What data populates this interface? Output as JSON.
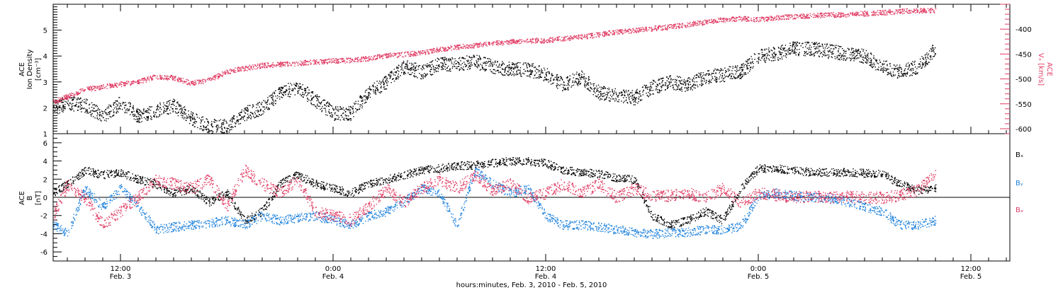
{
  "colors": {
    "black": "#000000",
    "red": "#e03c64",
    "blue": "#1e82dc"
  },
  "xlabel": "hours:minutes, Feb. 3, 2010 - Feb. 5, 2010",
  "x_ticks": [
    {
      "time": "12:00",
      "date": "Feb. 3",
      "hours": 12
    },
    {
      "time": "0:00",
      "date": "Feb. 4",
      "hours": 24
    },
    {
      "time": "12:00",
      "date": "Feb. 4",
      "hours": 36
    },
    {
      "time": "0:00",
      "date": "Feb. 5",
      "hours": 48
    },
    {
      "time": "12:00",
      "date": "Feb. 5",
      "hours": 60
    }
  ],
  "chart_data": [
    {
      "type": "scatter",
      "panel": "top",
      "xlim_hours": [
        8.2,
        62.2
      ],
      "ylabel_lines": [
        "ACE",
        "Ion Density",
        "[cm⁻³]"
      ],
      "ylim": [
        1,
        6
      ],
      "yticks": [
        1,
        2,
        3,
        4,
        5
      ],
      "y2label_lines": [
        "ACE",
        "Vₓ [km/s]"
      ],
      "y2lim": [
        -610,
        -350
      ],
      "y2ticks": [
        -400,
        -450,
        -500,
        -550,
        -600
      ],
      "series": [
        {
          "name": "",
          "axis": "left",
          "color": "#000000",
          "x_hours": [
            8.2,
            9,
            10,
            11,
            12,
            13,
            14,
            15,
            16,
            17,
            18,
            19,
            20,
            21,
            22,
            23,
            24,
            25,
            26,
            27,
            28,
            29,
            30,
            31,
            32,
            33,
            34,
            35,
            36,
            37,
            38,
            39,
            40,
            41,
            42,
            43,
            44,
            45,
            46,
            47,
            48,
            49,
            50,
            51,
            52,
            53,
            54,
            55,
            56,
            57,
            58
          ],
          "y": [
            2.0,
            2.2,
            2.1,
            1.7,
            2.2,
            1.7,
            1.9,
            2.1,
            1.6,
            1.3,
            1.3,
            1.8,
            2.0,
            2.6,
            2.8,
            2.3,
            1.8,
            1.8,
            2.6,
            3.0,
            3.6,
            3.4,
            3.7,
            3.7,
            3.8,
            3.6,
            3.5,
            3.5,
            3.3,
            2.9,
            3.2,
            2.6,
            2.5,
            2.4,
            2.8,
            3.0,
            2.9,
            3.2,
            3.3,
            3.4,
            4.0,
            4.1,
            4.3,
            4.3,
            4.2,
            4.1,
            4.0,
            3.6,
            3.4,
            3.6,
            4.3
          ]
        },
        {
          "name": "",
          "axis": "right",
          "color": "#e03c64",
          "x_hours": [
            8.2,
            9,
            10,
            11,
            12,
            13,
            14,
            15,
            16,
            17,
            18,
            19,
            20,
            21,
            22,
            23,
            24,
            25,
            26,
            27,
            28,
            29,
            30,
            31,
            32,
            33,
            34,
            35,
            36,
            37,
            38,
            39,
            40,
            41,
            42,
            43,
            44,
            45,
            46,
            47,
            48,
            49,
            50,
            51,
            52,
            53,
            54,
            55,
            56,
            57,
            58
          ],
          "y": [
            -545,
            -535,
            -520,
            -515,
            -510,
            -505,
            -495,
            -497,
            -508,
            -502,
            -485,
            -478,
            -472,
            -470,
            -468,
            -465,
            -463,
            -462,
            -458,
            -452,
            -450,
            -447,
            -440,
            -435,
            -432,
            -428,
            -425,
            -422,
            -422,
            -418,
            -415,
            -410,
            -405,
            -402,
            -398,
            -395,
            -390,
            -385,
            -380,
            -378,
            -380,
            -376,
            -374,
            -372,
            -371,
            -370,
            -368,
            -366,
            -364,
            -362,
            -362
          ]
        }
      ]
    },
    {
      "type": "scatter",
      "panel": "bottom",
      "xlim_hours": [
        8.2,
        62.2
      ],
      "ylabel_lines": [
        "ACE",
        "B",
        "[nT]"
      ],
      "ylim": [
        -7,
        7
      ],
      "yticks": [
        -6,
        -4,
        -2,
        0,
        2,
        4,
        6
      ],
      "zero_line": true,
      "series": [
        {
          "name": "Bₓ",
          "color": "#000000",
          "x_hours": [
            8.2,
            9,
            10,
            11,
            12,
            13,
            14,
            15,
            16,
            17,
            18,
            19,
            20,
            21,
            22,
            23,
            24,
            25,
            26,
            27,
            28,
            29,
            30,
            31,
            32,
            33,
            34,
            35,
            36,
            37,
            38,
            39,
            40,
            41,
            42,
            43,
            44,
            45,
            46,
            47,
            48,
            49,
            50,
            51,
            52,
            53,
            54,
            55,
            56,
            57,
            58
          ],
          "y": [
            0.5,
            1.5,
            3.0,
            2.5,
            2.8,
            2.0,
            1.5,
            0.5,
            1.0,
            -0.5,
            0.5,
            -2.5,
            -1.5,
            1.5,
            2.5,
            1.5,
            1.0,
            0.5,
            1.5,
            2.0,
            2.5,
            3.0,
            3.2,
            3.5,
            3.6,
            3.8,
            4.0,
            4.0,
            3.8,
            3.0,
            2.8,
            2.6,
            2.2,
            2.0,
            -2.0,
            -3.0,
            -2.5,
            -1.5,
            -2.5,
            1.0,
            3.2,
            3.2,
            3.0,
            2.8,
            2.8,
            2.8,
            2.7,
            2.6,
            1.5,
            0.8,
            1.0
          ]
        },
        {
          "name": "Bᵧ",
          "color": "#1e82dc",
          "x_hours": [
            8.2,
            9,
            10,
            11,
            12,
            13,
            14,
            15,
            16,
            17,
            18,
            19,
            20,
            21,
            22,
            23,
            24,
            25,
            26,
            27,
            28,
            29,
            30,
            31,
            32,
            33,
            34,
            35,
            36,
            37,
            38,
            39,
            40,
            41,
            42,
            43,
            44,
            45,
            46,
            47,
            48,
            49,
            50,
            51,
            52,
            53,
            54,
            55,
            56,
            57,
            58
          ],
          "y": [
            -3.0,
            -4.0,
            1.0,
            -1.0,
            1.0,
            -1.0,
            -3.5,
            -3.2,
            -3.0,
            -2.8,
            -2.5,
            -3.0,
            -2.0,
            -2.5,
            -2.2,
            -2.0,
            -2.5,
            -3.0,
            -2.0,
            -1.5,
            -0.5,
            1.0,
            0.5,
            -3.0,
            3.0,
            1.5,
            0.5,
            1.0,
            -2.0,
            -3.0,
            -3.0,
            -3.2,
            -3.5,
            -3.8,
            -4.0,
            -3.8,
            -3.8,
            -3.5,
            -3.5,
            -3.2,
            0.2,
            0.5,
            0.2,
            0.0,
            0.0,
            -0.5,
            -1.0,
            -1.5,
            -3.0,
            -3.0,
            -2.5
          ]
        },
        {
          "name": "Bₔ",
          "color": "#e03c64",
          "x_hours": [
            8.2,
            9,
            10,
            11,
            12,
            13,
            14,
            15,
            16,
            17,
            18,
            19,
            20,
            21,
            22,
            23,
            24,
            25,
            26,
            27,
            28,
            29,
            30,
            31,
            32,
            33,
            34,
            35,
            36,
            37,
            38,
            39,
            40,
            41,
            42,
            43,
            44,
            45,
            46,
            47,
            48,
            49,
            50,
            51,
            52,
            53,
            54,
            55,
            56,
            57,
            58
          ],
          "y": [
            -2.0,
            1.5,
            0.0,
            -3.0,
            -1.5,
            0.0,
            2.0,
            1.5,
            1.0,
            2.0,
            -1.0,
            3.0,
            1.5,
            0.5,
            2.0,
            -1.5,
            -2.0,
            -2.5,
            -1.0,
            1.0,
            -0.5,
            1.0,
            2.0,
            1.0,
            2.5,
            0.8,
            1.5,
            0.0,
            0.5,
            1.5,
            0.5,
            1.5,
            0.0,
            1.0,
            0.2,
            0.2,
            0.5,
            0.0,
            1.0,
            -0.5,
            0.5,
            0.3,
            0.0,
            0.2,
            0.0,
            0.1,
            0.0,
            0.0,
            0.3,
            0.8,
            2.5
          ]
        }
      ]
    }
  ]
}
